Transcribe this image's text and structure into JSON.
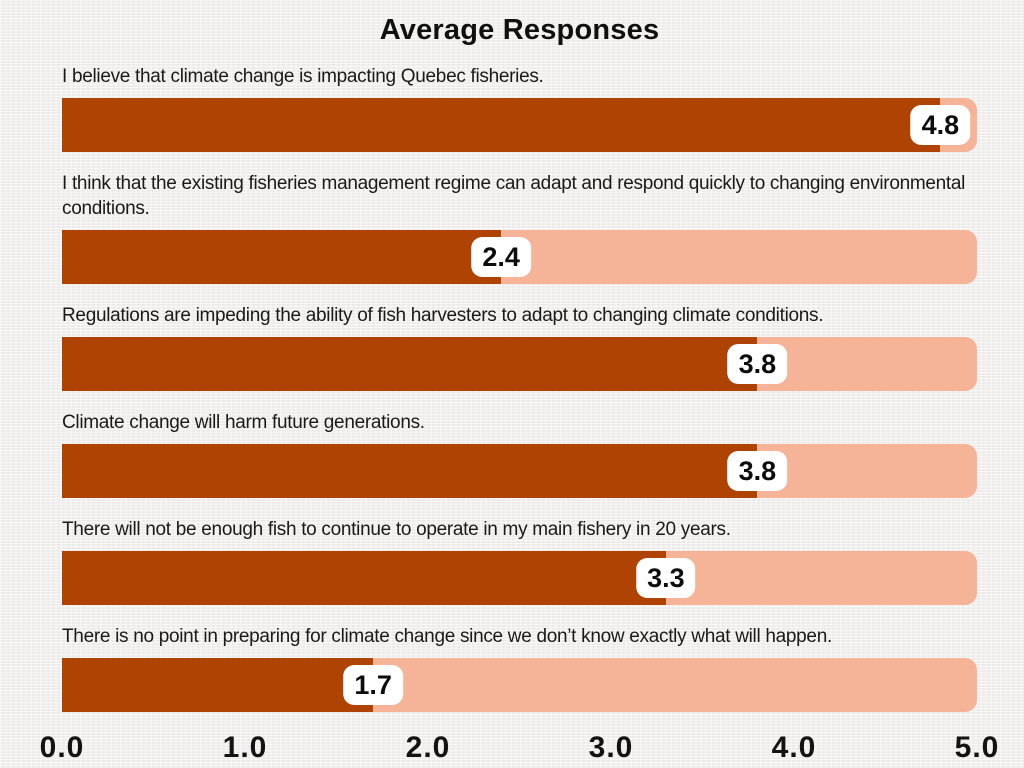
{
  "title": "Average Responses",
  "chart_data": {
    "type": "bar",
    "orientation": "horizontal",
    "title": "Average Responses",
    "categories": [
      "I believe that climate change is impacting Quebec fisheries.",
      "I think that the existing fisheries management regime can adapt and respond quickly to changing environmental conditions.",
      "Regulations are impeding the ability of fish harvesters to adapt to changing climate conditions.",
      "Climate change will harm future generations.",
      "There will not be enough fish to continue to operate in my main fishery in 20 years.",
      "There is no point in preparing for climate change since we don’t know exactly what will happen."
    ],
    "values": [
      4.8,
      2.4,
      3.8,
      3.8,
      3.3,
      1.7
    ],
    "value_labels": [
      "4.8",
      "2.4",
      "3.8",
      "3.8",
      "3.3",
      "1.7"
    ],
    "xlim": [
      0,
      5
    ],
    "x_ticks": [
      "0.0",
      "1.0",
      "2.0",
      "3.0",
      "4.0",
      "5.0"
    ],
    "grid": false,
    "legend": false,
    "colors": {
      "bar_fill": "#AF4303",
      "bar_track": "#F5B498",
      "value_box_bg": "#FFFFFF",
      "value_text": "#0D0D0D",
      "label_text": "#1A1A1A",
      "background": "#EFEEEC"
    }
  }
}
